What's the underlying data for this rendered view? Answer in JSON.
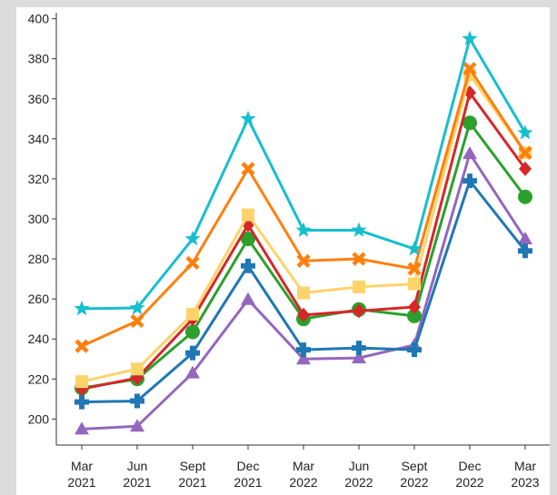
{
  "chart_data": {
    "type": "line",
    "categories": [
      [
        "Mar",
        "2021"
      ],
      [
        "Jun",
        "2021"
      ],
      [
        "Sept",
        "2021"
      ],
      [
        "Dec",
        "2021"
      ],
      [
        "Mar",
        "2022"
      ],
      [
        "Jun",
        "2022"
      ],
      [
        "Sept",
        "2022"
      ],
      [
        "Dec",
        "2022"
      ],
      [
        "Mar",
        "2023"
      ]
    ],
    "ylim": [
      187,
      403
    ],
    "yticks": [
      200,
      220,
      240,
      260,
      280,
      300,
      320,
      340,
      360,
      380,
      400
    ],
    "grid": false,
    "series": [
      {
        "color": "#9467bd",
        "marker": "triangle",
        "values": [
          195,
          196.4,
          223,
          259.7,
          230,
          230.5,
          237,
          332.6,
          290
        ]
      },
      {
        "color": "#1f77b4",
        "marker": "plus",
        "values": [
          208.5,
          209,
          233,
          276.5,
          234.6,
          235.5,
          234.6,
          319,
          284
        ]
      },
      {
        "color": "#2ca02c",
        "marker": "circle",
        "values": [
          215.5,
          220,
          243.5,
          290,
          250,
          254.7,
          251.5,
          348,
          311
        ]
      },
      {
        "color": "#d62728",
        "marker": "diamond",
        "values": [
          215,
          220.5,
          250,
          297,
          252,
          254,
          256,
          363,
          325
        ]
      },
      {
        "color": "#fdd36a",
        "marker": "square",
        "values": [
          218.7,
          225,
          252.4,
          302,
          263,
          266,
          267.5,
          372,
          333
        ]
      },
      {
        "color": "#ff7f0e",
        "marker": "x",
        "values": [
          236.4,
          249,
          278,
          325,
          279,
          280,
          275,
          375,
          333
        ]
      },
      {
        "color": "#17becf",
        "marker": "star",
        "values": [
          255.1,
          255.5,
          290,
          350,
          294.3,
          294.3,
          285,
          390,
          343
        ]
      }
    ]
  }
}
